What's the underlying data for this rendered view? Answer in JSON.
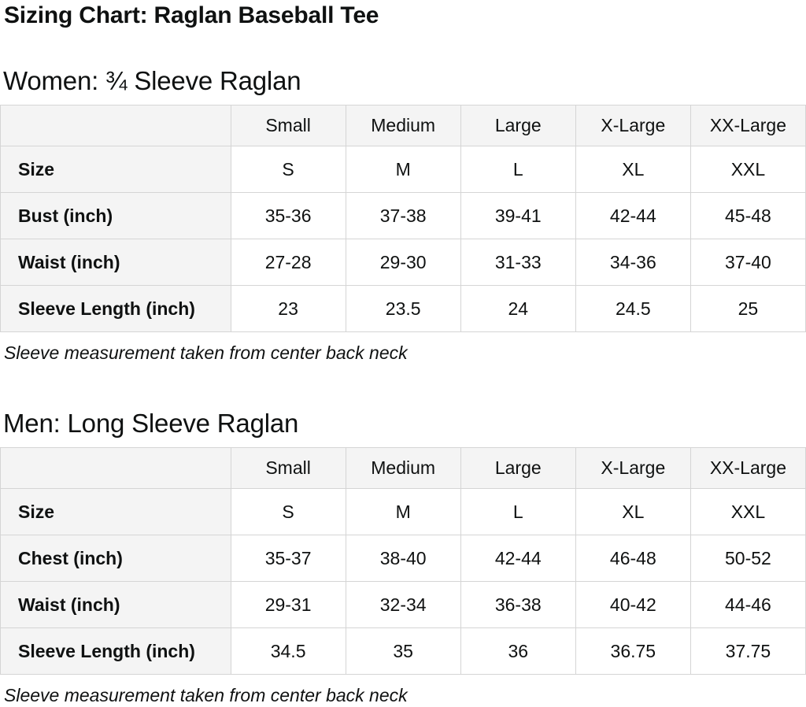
{
  "page": {
    "title": "Sizing Chart: Raglan Baseball Tee"
  },
  "colors": {
    "text": "#0f1111",
    "table_border": "#d5d5d5",
    "header_cell_background": "#f4f4f4",
    "data_cell_background": "#ffffff"
  },
  "tables": [
    {
      "heading": "Women: ¾ Sleeve Raglan",
      "columns": [
        "",
        "Small",
        "Medium",
        "Large",
        "X-Large",
        "XX-Large"
      ],
      "rows": [
        {
          "label": "Size",
          "values": [
            "S",
            "M",
            "L",
            "XL",
            "XXL"
          ]
        },
        {
          "label": "Bust (inch)",
          "values": [
            "35-36",
            "37-38",
            "39-41",
            "42-44",
            "45-48"
          ]
        },
        {
          "label": "Waist (inch)",
          "values": [
            "27-28",
            "29-30",
            "31-33",
            "34-36",
            "37-40"
          ]
        },
        {
          "label": "Sleeve Length (inch)",
          "values": [
            "23",
            "23.5",
            "24",
            "24.5",
            "25"
          ]
        }
      ],
      "note": "Sleeve measurement taken from center back neck"
    },
    {
      "heading": "Men: Long Sleeve Raglan",
      "columns": [
        "",
        "Small",
        "Medium",
        "Large",
        "X-Large",
        "XX-Large"
      ],
      "rows": [
        {
          "label": "Size",
          "values": [
            "S",
            "M",
            "L",
            "XL",
            "XXL"
          ]
        },
        {
          "label": "Chest (inch)",
          "values": [
            "35-37",
            "38-40",
            "42-44",
            "46-48",
            "50-52"
          ]
        },
        {
          "label": "Waist (inch)",
          "values": [
            "29-31",
            "32-34",
            "36-38",
            "40-42",
            "44-46"
          ]
        },
        {
          "label": "Sleeve Length (inch)",
          "values": [
            "34.5",
            "35",
            "36",
            "36.75",
            "37.75"
          ]
        }
      ],
      "note": "Sleeve measurement taken from center back neck"
    }
  ]
}
